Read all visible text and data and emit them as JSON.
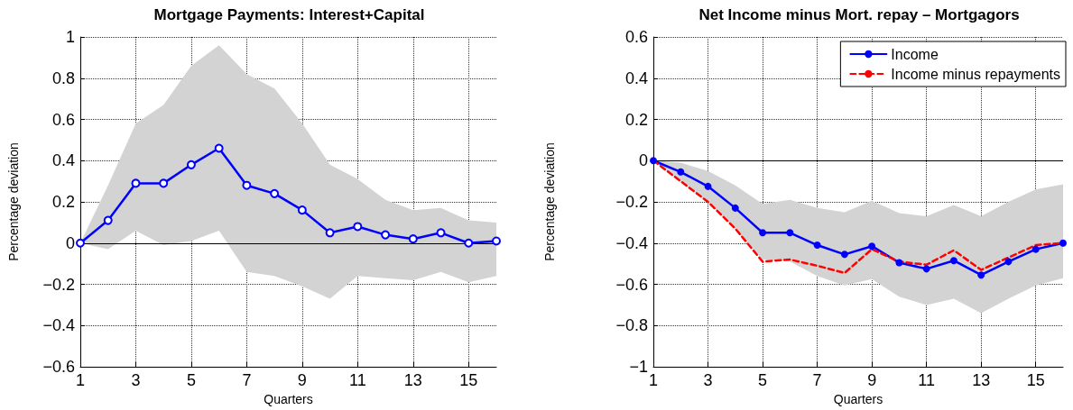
{
  "chart_data": [
    {
      "type": "line",
      "title": "Mortgage Payments: Interest+Capital",
      "xlabel": "Quarters",
      "ylabel": "Percentage deviation",
      "x": [
        1,
        2,
        3,
        4,
        5,
        6,
        7,
        8,
        9,
        10,
        11,
        12,
        13,
        14,
        15,
        16
      ],
      "xlim": [
        1,
        16
      ],
      "xticks": [
        1,
        3,
        5,
        7,
        9,
        11,
        13,
        15
      ],
      "ylim": [
        -0.6,
        1
      ],
      "yticks": [
        -0.6,
        -0.4,
        -0.2,
        0,
        0.2,
        0.4,
        0.6,
        0.8,
        1
      ],
      "grid": true,
      "legend": false,
      "series": [
        {
          "color": "#0000ff",
          "marker": "circle",
          "line_style": "solid",
          "values": [
            0,
            0.11,
            0.29,
            0.29,
            0.38,
            0.46,
            0.28,
            0.24,
            0.16,
            0.05,
            0.08,
            0.04,
            0.02,
            0.05,
            0,
            0.01
          ],
          "upper": [
            0,
            0.28,
            0.58,
            0.67,
            0.86,
            0.96,
            0.82,
            0.75,
            0.58,
            0.38,
            0.31,
            0.21,
            0.16,
            0.17,
            0.11,
            0.1
          ],
          "lower": [
            0,
            -0.03,
            0.06,
            -0.01,
            0.01,
            0.06,
            -0.14,
            -0.16,
            -0.21,
            -0.27,
            -0.16,
            -0.17,
            -0.18,
            -0.14,
            -0.19,
            -0.16
          ]
        }
      ],
      "ref_lines": [
        {
          "axis": "y",
          "value": 0,
          "color": "#000000"
        }
      ]
    },
    {
      "type": "line",
      "title": "Net Income minus Mort. repay – Mortgagors",
      "xlabel": "Quarters",
      "ylabel": "Percentage deviation",
      "x": [
        1,
        2,
        3,
        4,
        5,
        6,
        7,
        8,
        9,
        10,
        11,
        12,
        13,
        14,
        15,
        16
      ],
      "xlim": [
        1,
        16
      ],
      "xticks": [
        1,
        3,
        5,
        7,
        9,
        11,
        13,
        15
      ],
      "ylim": [
        -1,
        0.6
      ],
      "yticks": [
        -1,
        -0.8,
        -0.6,
        -0.4,
        -0.2,
        0,
        0.2,
        0.4,
        0.6
      ],
      "grid": true,
      "legend": "top right",
      "series": [
        {
          "name": "Income",
          "color": "#0000ff",
          "marker": "circle",
          "line_style": "solid",
          "values": [
            0,
            -0.055,
            -0.125,
            -0.23,
            -0.35,
            -0.35,
            -0.41,
            -0.455,
            -0.415,
            -0.495,
            -0.525,
            -0.485,
            -0.555,
            -0.49,
            -0.43,
            -0.4
          ],
          "upper": [
            0,
            -0.01,
            -0.05,
            -0.12,
            -0.21,
            -0.19,
            -0.23,
            -0.25,
            -0.195,
            -0.255,
            -0.27,
            -0.215,
            -0.27,
            -0.2,
            -0.14,
            -0.115
          ],
          "lower": [
            0,
            -0.1,
            -0.2,
            -0.33,
            -0.48,
            -0.49,
            -0.56,
            -0.605,
            -0.575,
            -0.66,
            -0.7,
            -0.67,
            -0.74,
            -0.67,
            -0.605,
            -0.57
          ]
        },
        {
          "name": "Income minus repayments",
          "color": "#ff0000",
          "marker": "none",
          "line_style": "dashed",
          "values": [
            0,
            -0.1,
            -0.2,
            -0.33,
            -0.49,
            -0.48,
            -0.51,
            -0.545,
            -0.43,
            -0.49,
            -0.505,
            -0.435,
            -0.53,
            -0.47,
            -0.41,
            -0.4
          ]
        }
      ],
      "ref_lines": [
        {
          "axis": "y",
          "value": 0,
          "color": "#000000"
        }
      ]
    }
  ]
}
